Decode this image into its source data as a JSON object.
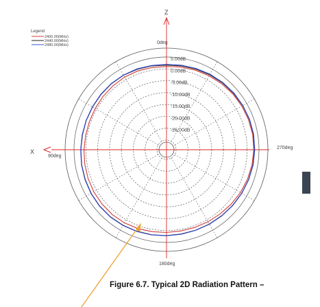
{
  "chart_data": {
    "type": "polar",
    "title": "",
    "legend": {
      "title": "Legend",
      "placement": "top-left",
      "entries": [
        {
          "label": "2400.00(MHz)",
          "color": "#d03a3a"
        },
        {
          "label": "2440.00(MHz)",
          "color": "#222222"
        },
        {
          "label": "2480.00(MHz)",
          "color": "#3a4fd0"
        }
      ]
    },
    "axis_labels": {
      "z": "Z",
      "x": "X"
    },
    "angle_labels": [
      "0deg",
      "90deg",
      "180deg",
      "270deg"
    ],
    "radial_tick_labels": [
      "5.00dB",
      "0.00dB",
      "-5.00dB",
      "-10.00dB",
      "-15.00dB",
      "-20.00dB",
      "-25.00dB"
    ],
    "radial_ticks_db": [
      5,
      0,
      -5,
      -10,
      -15,
      -20,
      -25,
      -30
    ],
    "r_range_db": [
      -30,
      5
    ],
    "grid": true,
    "series": [
      {
        "name": "2400.00(MHz)",
        "color": "#d03a3a",
        "gain_db": [
          1.0,
          1.3,
          1.6,
          1.9,
          2.2,
          2.5,
          2.7,
          2.8,
          2.9,
          2.8,
          2.6,
          2.3,
          2.0,
          1.6,
          1.2,
          1.0,
          0.8,
          0.7,
          0.8,
          1.0,
          1.3,
          1.5,
          1.6,
          1.5,
          1.4,
          1.2,
          1.0,
          0.8,
          0.6,
          0.6,
          0.7,
          0.9,
          1.1,
          1.3,
          1.3,
          1.1
        ]
      },
      {
        "name": "2440.00(MHz)",
        "color": "#222222",
        "gain_db": [
          1.6,
          1.8,
          2.1,
          2.4,
          2.7,
          2.9,
          3.1,
          3.2,
          3.2,
          3.1,
          3.0,
          2.8,
          2.6,
          2.4,
          2.2,
          2.1,
          2.0,
          2.0,
          2.1,
          2.3,
          2.5,
          2.7,
          2.8,
          2.8,
          2.7,
          2.5,
          2.3,
          2.1,
          2.0,
          2.0,
          2.0,
          2.1,
          2.2,
          2.2,
          2.0,
          1.8
        ]
      },
      {
        "name": "2480.00(MHz)",
        "color": "#3a4fd0",
        "gain_db": [
          1.9,
          2.1,
          2.4,
          2.7,
          2.9,
          3.1,
          3.2,
          3.3,
          3.3,
          3.2,
          3.1,
          2.9,
          2.7,
          2.5,
          2.3,
          2.2,
          2.1,
          2.1,
          2.2,
          2.4,
          2.6,
          2.8,
          2.9,
          2.9,
          2.8,
          2.6,
          2.4,
          2.2,
          2.1,
          2.1,
          2.1,
          2.2,
          2.3,
          2.3,
          2.2,
          2.0
        ]
      }
    ]
  },
  "caption": "Figure 6.7.  Typical 2D Radiation Pattern –"
}
